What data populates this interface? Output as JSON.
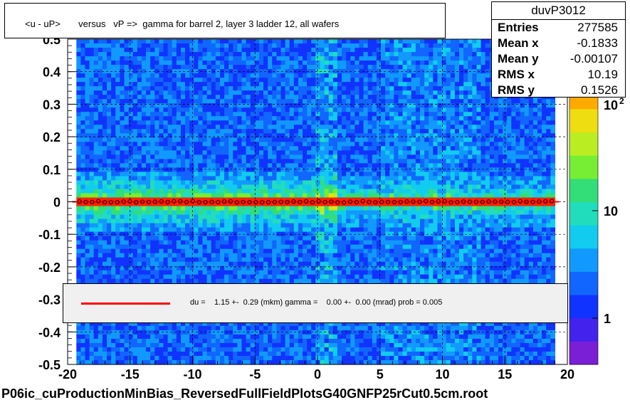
{
  "title": "<u - uP>       versus   vP =>  gamma for barrel 2, layer 3 ladder 12, all wafers",
  "stats": {
    "name": "duvP3012",
    "rows": [
      {
        "key": "Entries",
        "value": "277585"
      },
      {
        "key": "Mean x",
        "value": "-0.1833"
      },
      {
        "key": "Mean y",
        "value": "-0.00107"
      },
      {
        "key": "RMS x",
        "value": "10.19"
      },
      {
        "key": "RMS y",
        "value": "0.1526"
      }
    ]
  },
  "legend": {
    "text": "du =    1.15 +-  0.29 (mkm) gamma =    0.00 +-  0.00 (mrad) prob = 0.005",
    "line_color": "#ff0000"
  },
  "footer": "P06ic_cuProductionMinBias_ReversedFullFieldPlotsG40GNFP25rCut0.5cm.root",
  "chart_data": {
    "type": "heatmap",
    "title": "<u - uP>       versus   vP =>  gamma for barrel 2, layer 3 ladder 12, all wafers",
    "xlim": [
      -20,
      20
    ],
    "ylim": [
      -0.5,
      0.5
    ],
    "x_ticks": [
      "-20",
      "-15",
      "-10",
      "-5",
      "0",
      "5",
      "10",
      "15",
      "20"
    ],
    "y_ticks": [
      "-0.5",
      "-0.4",
      "-0.3",
      "-0.2",
      "-0.1",
      "0",
      "0.1",
      "0.2",
      "0.3",
      "0.4",
      "0.5"
    ],
    "x_data_range": [
      -19.3,
      19.0
    ],
    "z_scale": "log",
    "z_ticks": [
      "1",
      "10",
      "10^2"
    ],
    "grid": true,
    "fit": {
      "du_mkm": 1.15,
      "du_err": 0.29,
      "gamma_mrad": 0.0,
      "gamma_err": 0.0,
      "prob": 0.005
    },
    "profile_mean_y": 0.0
  },
  "colors": {
    "palette": [
      "#7a1fd6",
      "#4422ee",
      "#1133ff",
      "#1166ff",
      "#1199ff",
      "#11ccee",
      "#22ddbb",
      "#33dd77",
      "#77ee33",
      "#bbee22",
      "#eedd11",
      "#ffaa00",
      "#ff6600",
      "#ff2200"
    ],
    "fit_line": "#ff0000",
    "profile_marker": "#000000"
  }
}
